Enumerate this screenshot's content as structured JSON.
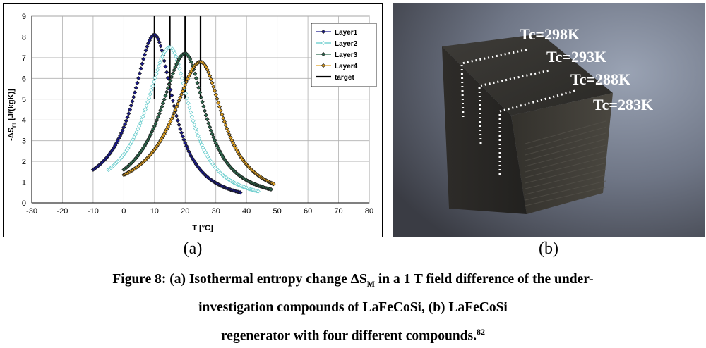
{
  "chart_data": {
    "type": "scatter",
    "xlabel": "T [°C]",
    "ylabel": "-ΔS_m [J/(kgK)]",
    "xlim": [
      -30,
      80
    ],
    "ylim": [
      0,
      9
    ],
    "xticks": [
      -30,
      -20,
      -10,
      0,
      10,
      20,
      30,
      40,
      50,
      60,
      70,
      80
    ],
    "yticks": [
      0,
      1,
      2,
      3,
      4,
      5,
      6,
      7,
      8,
      9
    ],
    "grid": true,
    "legend": "top-right",
    "series": [
      {
        "name": "Layer1",
        "color": "#1a1a8c",
        "marker": "diamond-filled",
        "center": 10,
        "x_range": [
          -10,
          38
        ],
        "peak": 8.1,
        "widths": [
          8.5,
          7.5
        ],
        "y_start": 1.6,
        "y_end": 0.5
      },
      {
        "name": "Layer2",
        "color": "#5fc9c9",
        "marker": "diamond-open",
        "center": 15,
        "x_range": [
          -5,
          44
        ],
        "peak": 7.5,
        "widths": [
          9.5,
          8.0
        ],
        "y_start": 1.6,
        "y_end": 0.55
      },
      {
        "name": "Layer3",
        "color": "#2f6b4f",
        "marker": "diamond-filled",
        "center": 20,
        "x_range": [
          0,
          48
        ],
        "peak": 7.2,
        "widths": [
          10.0,
          8.0
        ],
        "y_start": 1.6,
        "y_end": 0.65
      },
      {
        "name": "Layer4",
        "color": "#e0a020",
        "marker": "diamond-filled",
        "center": 25,
        "x_range": [
          0,
          49
        ],
        "peak": 6.8,
        "widths": [
          11.0,
          9.0
        ],
        "y_start": 1.35,
        "y_end": 0.9
      }
    ],
    "target": {
      "name": "target",
      "color": "#000000",
      "x": [
        10,
        15,
        20,
        25
      ]
    }
  },
  "panel_labels": {
    "a": "(a)",
    "b": "(b)"
  },
  "photo": {
    "curie_labels": [
      "Tc=298K",
      "Tc=293K",
      "Tc=288K",
      "Tc=283K"
    ]
  },
  "caption": {
    "line1_pre": "Figure 8: (a) Isothermal entropy change ΔS",
    "line1_sub": "M",
    "line1_post": " in a 1 T field difference of the under-",
    "line2": "investigation compounds of LaFeCoSi, (b) LaFeCoSi",
    "line3": "regenerator with four different compounds.",
    "ref": "82"
  }
}
